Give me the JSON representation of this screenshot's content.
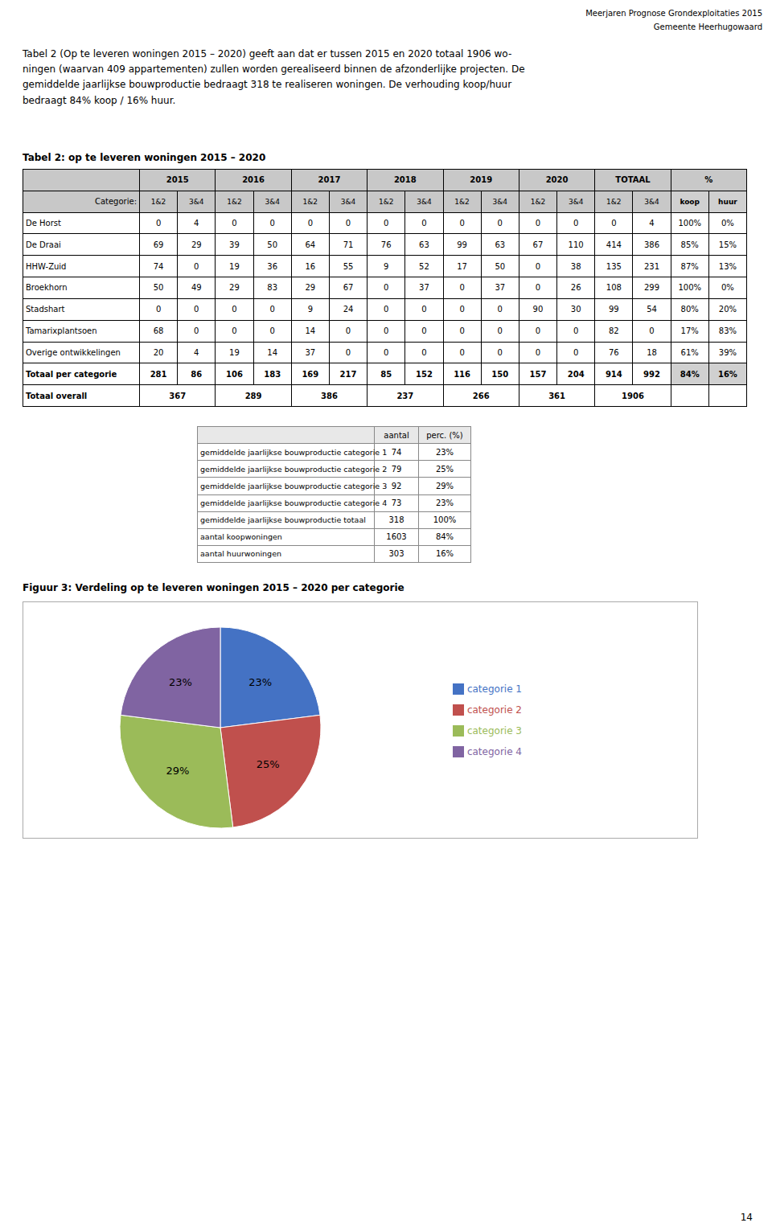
{
  "annotations": [
    "Meerjaren Prognose Grondexploitaties 2015",
    "Gemeente Heerhugowaard",
    "Tabel 2 (Op te leveren woningen 2015 – 2020) geeft aan dat er tussen 2015 en 2020 totaal 1906 wo-\nningen (waarvan 409 appartementen) zullen worden gerealiseerd binnen de afzonderlijke projecten. De\ngemiddelde jaarlijkse bouwproductie bedraagt 318 te realiseren woningen. De verhouding koop/huur\nbedraagt 84% koop / 16% huur.",
    "14"
  ],
  "chart_data": [
    {
      "type": "table",
      "title": "Tabel 2: op te leveren woningen 2015 – 2020",
      "column_groups": [
        "2015",
        "2016",
        "2017",
        "2018",
        "2019",
        "2020",
        "TOTAAL",
        "%"
      ],
      "row_header": "Categorie:",
      "columns": [
        "1&2",
        "3&4",
        "1&2",
        "3&4",
        "1&2",
        "3&4",
        "1&2",
        "3&4",
        "1&2",
        "3&4",
        "1&2",
        "3&4",
        "1&2",
        "3&4",
        "koop",
        "huur"
      ],
      "rows": [
        {
          "name": "De Horst",
          "values": [
            0,
            4,
            0,
            0,
            0,
            0,
            0,
            0,
            0,
            0,
            0,
            0,
            0,
            4
          ],
          "labels": [
            "100%",
            "0%"
          ]
        },
        {
          "name": "De Draai",
          "values": [
            69,
            29,
            39,
            50,
            64,
            71,
            76,
            63,
            99,
            63,
            67,
            110,
            414,
            386
          ],
          "labels": [
            "85%",
            "15%"
          ]
        },
        {
          "name": "HHW-Zuid",
          "values": [
            74,
            0,
            19,
            36,
            16,
            55,
            9,
            52,
            17,
            50,
            0,
            38,
            135,
            231
          ],
          "labels": [
            "87%",
            "13%"
          ]
        },
        {
          "name": "Broekhorn",
          "values": [
            50,
            49,
            29,
            83,
            29,
            67,
            0,
            37,
            0,
            37,
            0,
            26,
            108,
            299
          ],
          "labels": [
            "100%",
            "0%"
          ]
        },
        {
          "name": "Stadshart",
          "values": [
            0,
            0,
            0,
            0,
            9,
            24,
            0,
            0,
            0,
            0,
            90,
            30,
            99,
            54
          ],
          "labels": [
            "80%",
            "20%"
          ]
        },
        {
          "name": "Tamarixplantsoen",
          "values": [
            68,
            0,
            0,
            0,
            14,
            0,
            0,
            0,
            0,
            0,
            0,
            0,
            82,
            0
          ],
          "labels": [
            "17%",
            "83%"
          ]
        },
        {
          "name": "Overige ontwikkelingen",
          "values": [
            20,
            4,
            19,
            14,
            37,
            0,
            0,
            0,
            0,
            0,
            0,
            0,
            76,
            18
          ],
          "labels": [
            "61%",
            "39%"
          ]
        }
      ],
      "total_row": {
        "name": "Totaal per categorie",
        "values": [
          281,
          86,
          106,
          183,
          169,
          217,
          85,
          152,
          116,
          150,
          157,
          204,
          914,
          992
        ],
        "labels": [
          "84%",
          "16%"
        ]
      },
      "overall_row": {
        "name": "Totaal overall",
        "values": [
          367,
          289,
          386,
          237,
          266,
          361,
          1906
        ]
      }
    },
    {
      "type": "table",
      "columns": [
        "aantal",
        "perc. (%)"
      ],
      "rows": [
        {
          "name": "gemiddelde jaarlijkse bouwproductie categorie 1",
          "aantal": 74,
          "perc": "23%"
        },
        {
          "name": "gemiddelde jaarlijkse bouwproductie categorie 2",
          "aantal": 79,
          "perc": "25%"
        },
        {
          "name": "gemiddelde jaarlijkse bouwproductie categorie 3",
          "aantal": 92,
          "perc": "29%"
        },
        {
          "name": "gemiddelde jaarlijkse bouwproductie categorie 4",
          "aantal": 73,
          "perc": "23%"
        },
        {
          "name": "gemiddelde jaarlijkse bouwproductie totaal",
          "aantal": 318,
          "perc": "100%"
        },
        {
          "name": "aantal koopwoningen",
          "aantal": 1603,
          "perc": "84%"
        },
        {
          "name": "aantal huurwoningen",
          "aantal": 303,
          "perc": "16%"
        }
      ]
    },
    {
      "type": "pie",
      "title": "Figuur 3: Verdeling op te leveren woningen 2015 – 2020 per categorie",
      "categories": [
        "categorie 1",
        "categorie 2",
        "categorie 3",
        "categorie 4"
      ],
      "values": [
        23,
        25,
        29,
        23
      ],
      "value_labels": [
        "23%",
        "25%",
        "29%",
        "23%"
      ],
      "colors": [
        "#4472C4",
        "#C0504D",
        "#9BBB59",
        "#8064A2"
      ],
      "data_labels": true,
      "legend": "right"
    }
  ]
}
